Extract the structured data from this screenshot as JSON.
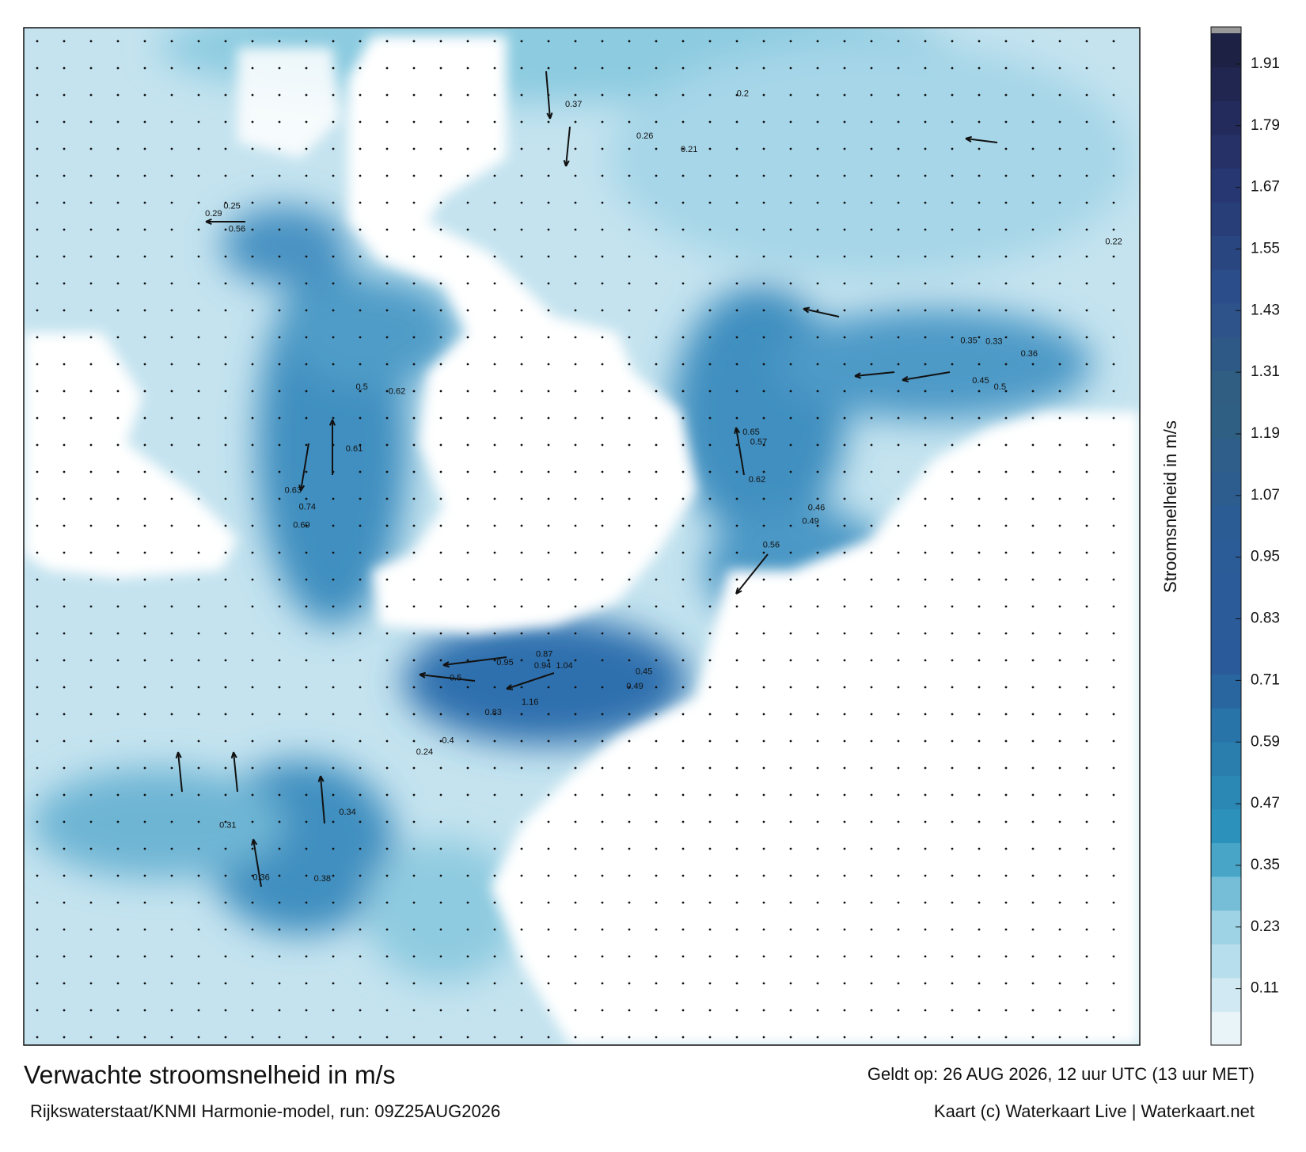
{
  "chart_data": {
    "type": "map",
    "title": "Verwachte stroomsnelheid in m/s",
    "source": "Rijkswaterstaat/KNMI Harmonie-model, run: 09Z25AUG2026",
    "valid_time": "Geldt op: 26 AUG 2026, 12 uur UTC (13 uur MET)",
    "credit": "Kaart (c) Waterkaart Live | Waterkaart.net",
    "colorbar_label": "Stroomsnelheid in m/s",
    "ylim": [
      0,
      1.97
    ],
    "yticks": [
      0.11,
      0.23,
      0.35,
      0.47,
      0.59,
      0.71,
      0.83,
      0.95,
      1.07,
      1.19,
      1.31,
      1.43,
      1.55,
      1.67,
      1.79,
      1.91
    ],
    "current_labels": [
      0.56,
      0.74,
      0.69,
      0.63,
      0.61,
      0.5,
      0.62,
      0.95,
      1.04,
      0.94,
      1.16,
      0.83,
      0.87,
      0.5,
      0.4,
      0.45,
      0.49,
      0.65,
      0.62,
      0.57,
      0.56,
      0.46,
      0.49,
      0.35,
      0.33,
      0.45,
      0.5,
      0.36,
      0.22,
      0.31,
      0.36,
      0.38,
      0.34,
      0.24,
      0.29,
      0.25,
      0.2,
      0.37,
      0.26,
      0.21
    ]
  }
}
